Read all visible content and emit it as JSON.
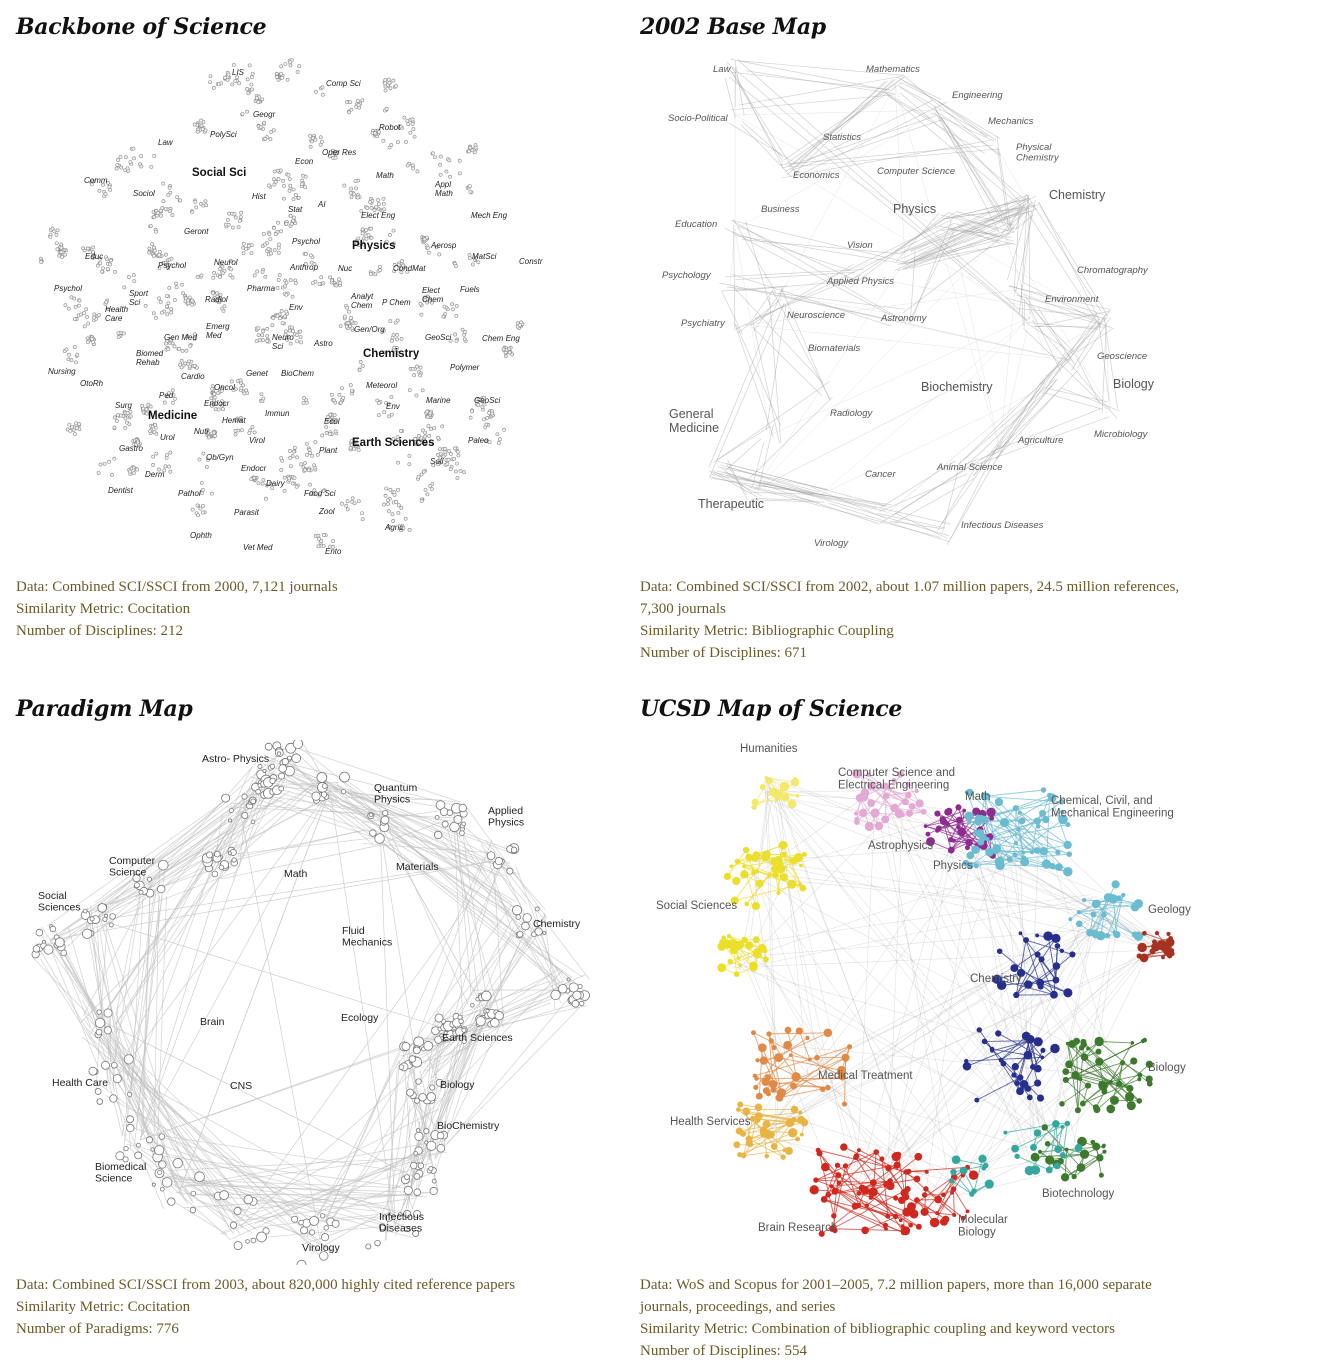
{
  "panels": {
    "backbone": {
      "title": "Backbone of Science",
      "labels": [
        "LIS",
        "Comp Sci",
        "Geogr",
        "Robot",
        "PolySci",
        "Law",
        "Oper Res",
        "Econ",
        "Math",
        "Comm",
        "Social Sci",
        "Sociol",
        "Hist",
        "Appl Math",
        "AI",
        "Stat",
        "Elect Eng",
        "Mech Eng",
        "Geront",
        "Educ",
        "Psychol",
        "Physics",
        "Aerosp",
        "Constr",
        "Neurol",
        "Psychol",
        "Anthrop",
        "Nuc",
        "CondMat",
        "MatSci",
        "Psychol",
        "Pharma",
        "Analyt Chem",
        "P Chem",
        "Elect Chem",
        "Fuels",
        "Sport Sci",
        "Radiol",
        "Env",
        "Health Care",
        "Emerg Med",
        "Gen Med",
        "Neuro Sci",
        "Astro",
        "Gen/Org",
        "GeoSci",
        "Chem Eng",
        "Biomed Rehab",
        "Chemistry",
        "Nursing",
        "OtoRh",
        "Cardio",
        "Genet",
        "BioChem",
        "Polymer",
        "Oncol",
        "Meteorol",
        "Ped",
        "Surg",
        "Endocr",
        "Env",
        "Marine",
        "GeoSci",
        "Medicine",
        "Hemat",
        "Immun",
        "Ecol",
        "Nutr",
        "Urol",
        "Earth Sciences",
        "Paleo",
        "Gastro",
        "Virol",
        "Plant",
        "Ob/Gyn",
        "Soil",
        "Endocr",
        "Derm",
        "Dairy",
        "Dentist",
        "Pathol",
        "Food Sci",
        "Parasit",
        "Zool",
        "Agric",
        "Ophth",
        "Vet Med",
        "Ento"
      ],
      "caption": {
        "line1": "Data: Combined SCI/SSCI from 2000, 7,121 journals",
        "line2": "Similarity Metric: Cocitation",
        "line3": "Number of Disciplines: 212"
      }
    },
    "basemap": {
      "title": "2002 Base Map",
      "labels": [
        "Law",
        "Mathematics",
        "Engineering",
        "Socio-Political",
        "Mechanics",
        "Statistics",
        "Physical Chemistry",
        "Economics",
        "Computer Science",
        "Chemistry",
        "Business",
        "Physics",
        "Education",
        "Vision",
        "Psychology",
        "Chromatography",
        "Applied Physics",
        "Environment",
        "Psychiatry",
        "Neuroscience",
        "Astronomy",
        "Biomaterials",
        "Geoscience",
        "Biochemistry",
        "Biology",
        "General Medicine",
        "Radiology",
        "Agriculture",
        "Microbiology",
        "Animal Science",
        "Cancer",
        "Therapeutic",
        "Infectious Diseases",
        "Virology"
      ],
      "caption": {
        "line1": "Data: Combined SCI/SSCI from 2002, about 1.07 million papers, 24.5 million references,",
        "line2": "7,300 journals",
        "line3": "Similarity Metric: Bibliographic Coupling",
        "line4": "Number of Disciplines: 671"
      }
    },
    "paradigm": {
      "title": "Paradigm Map",
      "labels": [
        "Astro- Physics",
        "Quantum Physics",
        "Applied Physics",
        "Computer Science",
        "Math",
        "Materials",
        "Social Sciences",
        "Chemistry",
        "Fluid Mechanics",
        "Brain",
        "Ecology",
        "Earth Sciences",
        "Health Care",
        "CNS",
        "Biology",
        "BioChemistry",
        "Biomedical Science",
        "Infectious Diseases",
        "Virology"
      ],
      "caption": {
        "line1": "Data: Combined SCI/SSCI from 2003, about 820,000 highly cited reference papers",
        "line2": "Similarity Metric: Cocitation",
        "line3": "Number of Paradigms: 776"
      }
    },
    "ucsd": {
      "title": "UCSD Map of Science",
      "labels": [
        "Humanities",
        "Computer Science and Electrical Engineering",
        "Math",
        "Chemical, Civil, and Mechanical Engineering",
        "Astrophysics",
        "Physics",
        "Social Sciences",
        "Geology",
        "Chemistry",
        "Biology",
        "Medical Treatment",
        "Health Services",
        "Biotechnology",
        "Brain Research",
        "Molecular Biology"
      ],
      "colors": {
        "humanities": "#f2e96b",
        "social": "#ecdf2c",
        "cs": "#e4a8d4",
        "physics": "#8f2a8f",
        "engineering": "#6bbcd0",
        "geology": "#a53220",
        "chemistry": "#26308c",
        "biology": "#3d7a2e",
        "biotech": "#34a8a0",
        "medical": "#e08a48",
        "health": "#e9b444",
        "brain": "#d0281e"
      },
      "caption": {
        "line1": "Data: WoS and Scopus for 2001–2005, 7.2 million papers, more than 16,000 separate",
        "line2": "journals, proceedings, and series",
        "line3": "Similarity Metric: Combination of bibliographic coupling and keyword vectors",
        "line4": "Number of Disciplines: 554"
      }
    }
  }
}
